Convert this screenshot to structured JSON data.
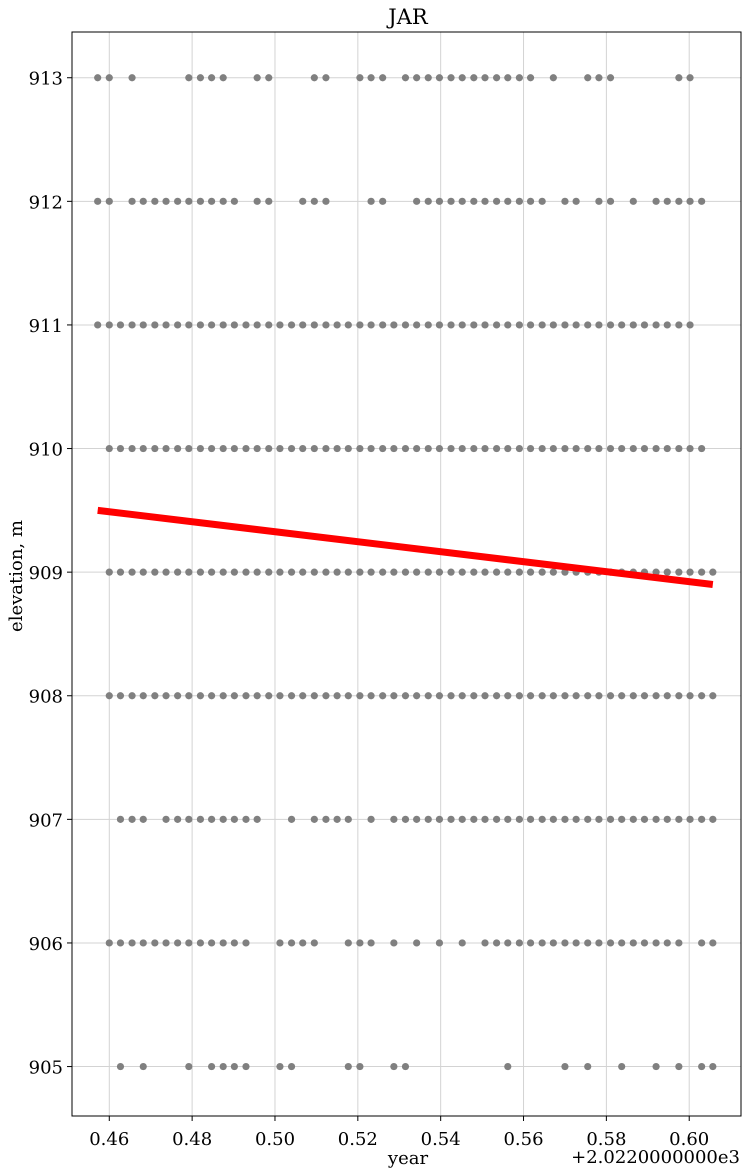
{
  "chart_data": {
    "type": "scatter",
    "title": "JAR",
    "xlabel": "year",
    "ylabel": "elevation, m",
    "x_offset_label": "+2.0220000000e3",
    "xlim": [
      2022.451,
      2022.6125
    ],
    "ylim": [
      904.6,
      913.37
    ],
    "xticks": [
      2022.46,
      2022.48,
      2022.5,
      2022.52,
      2022.54,
      2022.56,
      2022.58,
      2022.6
    ],
    "xtick_labels": [
      "0.46",
      "0.48",
      "0.50",
      "0.52",
      "0.54",
      "0.56",
      "0.58",
      "0.60"
    ],
    "yticks": [
      905,
      906,
      907,
      908,
      909,
      910,
      911,
      912,
      913
    ],
    "ytick_labels": [
      "905",
      "906",
      "907",
      "908",
      "909",
      "910",
      "911",
      "912",
      "913"
    ],
    "grid": true,
    "series": [
      {
        "kind": "scatter",
        "color": "#808080",
        "points_by_level": [
          {
            "y": 913,
            "x": [
              2022.4572,
              2022.46,
              2022.4655,
              2022.4792,
              2022.482,
              2022.4847,
              2022.4875,
              2022.4957,
              2022.4985,
              2022.5095,
              2022.5123,
              2022.5205,
              2022.5232,
              2022.526,
              2022.5315,
              2022.5342,
              2022.537,
              2022.5397,
              2022.5425,
              2022.5452,
              2022.548,
              2022.5507,
              2022.5535,
              2022.5562,
              2022.559,
              2022.5617,
              2022.5672,
              2022.5755,
              2022.5782,
              2022.581,
              2022.5975,
              2022.6002
            ]
          },
          {
            "y": 912,
            "x": [
              2022.4572,
              2022.46,
              2022.4655,
              2022.4682,
              2022.471,
              2022.4737,
              2022.4765,
              2022.4792,
              2022.482,
              2022.4847,
              2022.4875,
              2022.4902,
              2022.4957,
              2022.4985,
              2022.5067,
              2022.5095,
              2022.5123,
              2022.5232,
              2022.526,
              2022.5342,
              2022.537,
              2022.5397,
              2022.5425,
              2022.5452,
              2022.548,
              2022.5507,
              2022.5535,
              2022.5562,
              2022.559,
              2022.5617,
              2022.5645,
              2022.57,
              2022.5727,
              2022.5782,
              2022.581,
              2022.5865,
              2022.592,
              2022.5947,
              2022.5975,
              2022.6002,
              2022.603
            ]
          },
          {
            "y": 911,
            "x": [
              2022.4572,
              2022.46,
              2022.4627,
              2022.4655,
              2022.4682,
              2022.471,
              2022.4737,
              2022.4765,
              2022.4792,
              2022.482,
              2022.4847,
              2022.4875,
              2022.4902,
              2022.493,
              2022.4957,
              2022.4985,
              2022.5012,
              2022.504,
              2022.5067,
              2022.5095,
              2022.5123,
              2022.515,
              2022.5177,
              2022.5205,
              2022.5232,
              2022.526,
              2022.5287,
              2022.5315,
              2022.5342,
              2022.537,
              2022.5397,
              2022.5425,
              2022.5452,
              2022.548,
              2022.5507,
              2022.5535,
              2022.5562,
              2022.559,
              2022.5617,
              2022.5645,
              2022.5672,
              2022.57,
              2022.5727,
              2022.5755,
              2022.5782,
              2022.581,
              2022.5837,
              2022.5865,
              2022.5892,
              2022.592,
              2022.5947,
              2022.5975,
              2022.6002
            ]
          },
          {
            "y": 910,
            "x": [
              2022.46,
              2022.4627,
              2022.4655,
              2022.4682,
              2022.471,
              2022.4737,
              2022.4765,
              2022.4792,
              2022.482,
              2022.4847,
              2022.4875,
              2022.4902,
              2022.493,
              2022.4957,
              2022.4985,
              2022.5012,
              2022.504,
              2022.5067,
              2022.5095,
              2022.5123,
              2022.515,
              2022.5177,
              2022.5205,
              2022.5232,
              2022.526,
              2022.5287,
              2022.5315,
              2022.5342,
              2022.537,
              2022.5397,
              2022.5425,
              2022.5452,
              2022.548,
              2022.5507,
              2022.5535,
              2022.5562,
              2022.559,
              2022.5617,
              2022.5645,
              2022.5672,
              2022.57,
              2022.5727,
              2022.5755,
              2022.5782,
              2022.581,
              2022.5837,
              2022.5865,
              2022.5892,
              2022.592,
              2022.5947,
              2022.5975,
              2022.6002,
              2022.603
            ]
          },
          {
            "y": 909,
            "x": [
              2022.46,
              2022.4627,
              2022.4655,
              2022.4682,
              2022.471,
              2022.4737,
              2022.4765,
              2022.4792,
              2022.482,
              2022.4847,
              2022.4875,
              2022.4902,
              2022.493,
              2022.4957,
              2022.4985,
              2022.5012,
              2022.504,
              2022.5067,
              2022.5095,
              2022.5123,
              2022.515,
              2022.5177,
              2022.5205,
              2022.5232,
              2022.526,
              2022.5287,
              2022.5315,
              2022.5342,
              2022.537,
              2022.5397,
              2022.5425,
              2022.5452,
              2022.548,
              2022.5507,
              2022.5535,
              2022.5562,
              2022.559,
              2022.5617,
              2022.5645,
              2022.5672,
              2022.57,
              2022.5727,
              2022.5755,
              2022.5782,
              2022.581,
              2022.5837,
              2022.5865,
              2022.5892,
              2022.592,
              2022.5947,
              2022.5975,
              2022.6002,
              2022.603,
              2022.6057
            ]
          },
          {
            "y": 908,
            "x": [
              2022.46,
              2022.4627,
              2022.4655,
              2022.4682,
              2022.471,
              2022.4737,
              2022.4765,
              2022.4792,
              2022.482,
              2022.4847,
              2022.4875,
              2022.4902,
              2022.493,
              2022.4957,
              2022.4985,
              2022.5012,
              2022.504,
              2022.5067,
              2022.5095,
              2022.5123,
              2022.515,
              2022.5177,
              2022.5205,
              2022.5232,
              2022.526,
              2022.5287,
              2022.5315,
              2022.5342,
              2022.537,
              2022.5397,
              2022.5425,
              2022.5452,
              2022.548,
              2022.5507,
              2022.5535,
              2022.5562,
              2022.559,
              2022.5617,
              2022.5645,
              2022.5672,
              2022.57,
              2022.5727,
              2022.5755,
              2022.5782,
              2022.581,
              2022.5837,
              2022.5865,
              2022.5892,
              2022.592,
              2022.5947,
              2022.5975,
              2022.6002,
              2022.603,
              2022.6057
            ]
          },
          {
            "y": 907,
            "x": [
              2022.4627,
              2022.4655,
              2022.4682,
              2022.4737,
              2022.4765,
              2022.4792,
              2022.482,
              2022.4847,
              2022.4875,
              2022.4902,
              2022.493,
              2022.4957,
              2022.504,
              2022.5095,
              2022.5123,
              2022.515,
              2022.5177,
              2022.5232,
              2022.5287,
              2022.5315,
              2022.5342,
              2022.537,
              2022.5397,
              2022.5425,
              2022.5452,
              2022.548,
              2022.5507,
              2022.5535,
              2022.5562,
              2022.559,
              2022.5617,
              2022.5645,
              2022.5672,
              2022.57,
              2022.5727,
              2022.5755,
              2022.5782,
              2022.581,
              2022.5837,
              2022.5865,
              2022.5892,
              2022.592,
              2022.5947,
              2022.5975,
              2022.6002,
              2022.603,
              2022.6057
            ]
          },
          {
            "y": 906,
            "x": [
              2022.46,
              2022.4627,
              2022.4655,
              2022.4682,
              2022.471,
              2022.4737,
              2022.4765,
              2022.4792,
              2022.482,
              2022.4847,
              2022.4875,
              2022.4902,
              2022.493,
              2022.5012,
              2022.504,
              2022.5067,
              2022.5095,
              2022.5177,
              2022.5205,
              2022.5232,
              2022.5287,
              2022.5342,
              2022.5397,
              2022.5452,
              2022.5507,
              2022.5535,
              2022.5562,
              2022.559,
              2022.5617,
              2022.5645,
              2022.5672,
              2022.57,
              2022.5727,
              2022.5755,
              2022.5782,
              2022.581,
              2022.5837,
              2022.5865,
              2022.5892,
              2022.592,
              2022.5947,
              2022.5975,
              2022.603,
              2022.6057
            ]
          },
          {
            "y": 905,
            "x": [
              2022.4627,
              2022.4682,
              2022.4792,
              2022.4847,
              2022.4875,
              2022.4902,
              2022.493,
              2022.5012,
              2022.504,
              2022.5177,
              2022.5205,
              2022.5287,
              2022.5315,
              2022.5562,
              2022.57,
              2022.5755,
              2022.5837,
              2022.592,
              2022.5975,
              2022.603,
              2022.6057
            ]
          }
        ]
      },
      {
        "kind": "line",
        "color": "#ff0000",
        "x": [
          2022.4572,
          2022.6057
        ],
        "y": [
          909.5,
          908.9
        ]
      }
    ]
  }
}
